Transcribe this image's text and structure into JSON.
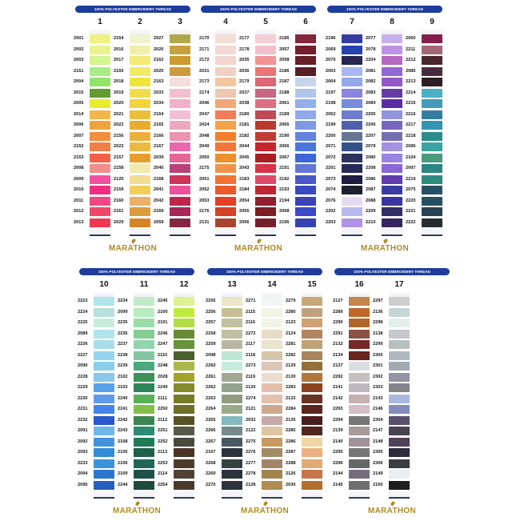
{
  "banner_text": "100% POLYESTER EMBROIDERY THREAD",
  "brand_logo": "MARATHON",
  "colors": {
    "banner": "#1e3c9c",
    "logo": "#b08a22"
  },
  "cards": [
    {
      "columns": [
        {
          "number": "1",
          "codes": [
            "2001",
            "2002",
            "2003",
            "2151",
            "2004",
            "2015",
            "2005",
            "2014",
            "2006",
            "2007",
            "2152",
            "2153",
            "2008",
            "2009",
            "2010",
            "2011",
            "2012",
            "2013"
          ],
          "swatches": [
            "#f6f77a",
            "#eefa8a",
            "#d8fb8a",
            "#a6f27e",
            "#8eea5e",
            "#5a9a22",
            "#eef020",
            "#f8b640",
            "#f8a030",
            "#f88a30",
            "#f77a3c",
            "#f8583c",
            "#f88a8a",
            "#f848a0",
            "#f8207a",
            "#f83c80",
            "#f83c60",
            "#f82c48"
          ]
        },
        {
          "number": "2",
          "codes": [
            "2154",
            "2016",
            "2017",
            "2155",
            "2018",
            "2019",
            "2020",
            "2021",
            "2022",
            "2156",
            "2023",
            "2157",
            "2158",
            "2125",
            "2159",
            "2160",
            "2161",
            "2029"
          ],
          "swatches": [
            "#f6f8d0",
            "#f6f6a8",
            "#f8f070",
            "#f8f060",
            "#f6e830",
            "#f6e040",
            "#f6d830",
            "#f0c030",
            "#eeaa20",
            "#f0b030",
            "#f0b838",
            "#ee9a20",
            "#f8f0b0",
            "#f8e090",
            "#f6d050",
            "#f0b060",
            "#e09a30",
            "#d88018"
          ]
        },
        {
          "number": "3",
          "codes": [
            "2027",
            "2026",
            "2162",
            "2025",
            "2163",
            "2033",
            "2034",
            "2164",
            "2165",
            "2166",
            "2167",
            "2039",
            "2040",
            "2168",
            "2041",
            "2042",
            "2169",
            "2059"
          ],
          "swatches": [
            "#b0a840",
            "#c8a030",
            "#d09820",
            "#d09830",
            "#f8e0e0",
            "#f8c0d0",
            "#f8b0cc",
            "#f8c0d8",
            "#f0a8c0",
            "#f090b0",
            "#f060a8",
            "#e86090",
            "#b83870",
            "#d02850",
            "#f04898",
            "#c01840",
            "#a81850",
            "#801838"
          ]
        }
      ]
    },
    {
      "columns": [
        {
          "number": "4",
          "codes": [
            "2170",
            "2171",
            "2172",
            "2031",
            "2173",
            "2174",
            "2046",
            "2047",
            "2024",
            "2048",
            "2049",
            "2050",
            "2175",
            "2051",
            "2052",
            "2053",
            "2176",
            "2131"
          ],
          "swatches": [
            "#f8e0d8",
            "#f8dcd4",
            "#f8d8d0",
            "#f8d4c4",
            "#f8c8a0",
            "#f0c8b0",
            "#f8a870",
            "#f87850",
            "#f8a040",
            "#f87a20",
            "#f87030",
            "#f08c20",
            "#f89040",
            "#f86c28",
            "#f05020",
            "#e83418",
            "#d83818",
            "#a83a20"
          ]
        },
        {
          "number": "5",
          "codes": [
            "2177",
            "2178",
            "2035",
            "2036",
            "2179",
            "2037",
            "2038",
            "2180",
            "2181",
            "2182",
            "2044",
            "2045",
            "2043",
            "2183",
            "2184",
            "2054",
            "2055",
            "2056"
          ],
          "swatches": [
            "#f8d0d8",
            "#f8c0cc",
            "#f89090",
            "#f07070",
            "#e06070",
            "#c86080",
            "#e06880",
            "#c04050",
            "#b83020",
            "#c03028",
            "#c81820",
            "#a81018",
            "#d82840",
            "#e04060",
            "#c01828",
            "#901020",
            "#781018",
            "#701020"
          ]
        },
        {
          "number": "6",
          "codes": [
            "2185",
            "2057",
            "2058",
            "2186",
            "2187",
            "2188",
            "2061",
            "2189",
            "2065",
            "2190",
            "2066",
            "2067",
            "2191",
            "2192",
            "2193",
            "2194",
            "2068",
            "2195"
          ],
          "swatches": [
            "#801830",
            "#701020",
            "#601018",
            "#501018",
            "#c8d8f0",
            "#b0c8f0",
            "#90b0f0",
            "#8ca8f0",
            "#7898e8",
            "#5880e0",
            "#4070e0",
            "#3060d8",
            "#6070d8",
            "#4050c8",
            "#3040c0",
            "#3038b8",
            "#3040c8",
            "#2838b0"
          ]
        }
      ]
    },
    {
      "columns": [
        {
          "number": "7",
          "codes": [
            "2196",
            "2069",
            "2070",
            "2063",
            "2064",
            "2197",
            "2198",
            "2062",
            "2199",
            "2200",
            "2071",
            "2072",
            "2201",
            "2073",
            "2074",
            "2076",
            "2202",
            "2203"
          ],
          "swatches": [
            "#2830a0",
            "#1838b0",
            "#181848",
            "#a8b8f8",
            "#90a8f0",
            "#8880e0",
            "#7088e0",
            "#6878d0",
            "#4858a8",
            "#607090",
            "#284888",
            "#202858",
            "#181c50",
            "#101038",
            "#101020",
            "#e8e0f8",
            "#b8b8f0",
            "#b090e8"
          ]
        },
        {
          "number": "8",
          "codes": [
            "2077",
            "2078",
            "2204",
            "2081",
            "2082",
            "2083",
            "2084",
            "2205",
            "2206",
            "2207",
            "2079",
            "2080",
            "2208",
            "2086",
            "2087",
            "2088",
            "2209",
            "2210"
          ],
          "swatches": [
            "#c8b0f0",
            "#c090e8",
            "#b860c0",
            "#9060d8",
            "#9050c8",
            "#6030a0",
            "#5020a0",
            "#9090e0",
            "#7060c0",
            "#7068b0",
            "#a090e8",
            "#9880e8",
            "#8860d8",
            "#5830b0",
            "#3030a0",
            "#3028a0",
            "#282060",
            "#281858"
          ]
        },
        {
          "number": "9",
          "codes": [
            "2060",
            "2211",
            "2212",
            "2085",
            "2213",
            "2214",
            "2215",
            "2216",
            "2217",
            "2218",
            "2096",
            "2104",
            "2097",
            "2219",
            "2075",
            "2220",
            "2221",
            "2222"
          ],
          "swatches": [
            "#801040",
            "#a06070",
            "#401820",
            "#402030",
            "#201018",
            "#40b0c8",
            "#3898b8",
            "#2878a0",
            "#2890b0",
            "#208888",
            "#30a0a0",
            "#409878",
            "#208080",
            "#208878",
            "#184860",
            "#184858",
            "#183848",
            "#182020"
          ]
        }
      ]
    },
    {
      "columns": [
        {
          "number": "10",
          "codes": [
            "2223",
            "2224",
            "2225",
            "2089",
            "2226",
            "2227",
            "2090",
            "2228",
            "2229",
            "2230",
            "2231",
            "2232",
            "2091",
            "2092",
            "2093",
            "2233",
            "2094",
            "2095"
          ],
          "swatches": [
            "#b0e8f0",
            "#b8e4e0",
            "#c8f0e0",
            "#b0e8f0",
            "#a8e0ec",
            "#90d8f0",
            "#88d0f0",
            "#88c8f0",
            "#50a0f0",
            "#5898f0",
            "#3880f0",
            "#2050d0",
            "#68b8f0",
            "#3890e0",
            "#2888d8",
            "#3090e0",
            "#2070d0",
            "#1858c0"
          ]
        },
        {
          "number": "11",
          "codes": [
            "2234",
            "2099",
            "2235",
            "2236",
            "2237",
            "2238",
            "2239",
            "2102",
            "2103",
            "2240",
            "2241",
            "2242",
            "2243",
            "2108",
            "2105",
            "2106",
            "2109",
            "2244"
          ],
          "swatches": [
            "#c0f0c8",
            "#b8f0c0",
            "#98e0a8",
            "#80d090",
            "#90d8b0",
            "#80c8a0",
            "#40a878",
            "#309050",
            "#208050",
            "#50b050",
            "#80c040",
            "#308048",
            "#208870",
            "#107850",
            "#105840",
            "#106050",
            "#104840",
            "#104030"
          ]
        },
        {
          "number": "12",
          "codes": [
            "2245",
            "2100",
            "2101",
            "2246",
            "2247",
            "2110",
            "2248",
            "2028",
            "2249",
            "2111",
            "2250",
            "2112",
            "2251",
            "2252",
            "2113",
            "2253",
            "2114",
            "2254"
          ],
          "swatches": [
            "#e0f890",
            "#c0f030",
            "#b0e040",
            "#608828",
            "#609030",
            "#405820",
            "#a8b840",
            "#a0a020",
            "#808820",
            "#707818",
            "#686818",
            "#504818",
            "#505040",
            "#404030",
            "#402818",
            "#403020",
            "#483828",
            "#403020"
          ]
        }
      ]
    },
    {
      "columns": [
        {
          "number": "13",
          "codes": [
            "2255",
            "2256",
            "2257",
            "2258",
            "2259",
            "2098",
            "2260",
            "2261",
            "2262",
            "2263",
            "2264",
            "2265",
            "2266",
            "2267",
            "2107",
            "2268",
            "2269",
            "2270"
          ],
          "swatches": [
            "#f0ecc8",
            "#c8c090",
            "#c0c0a0",
            "#c0c0a0",
            "#b8b8a0",
            "#c0ecd8",
            "#c8f0e0",
            "#a0a890",
            "#90a088",
            "#909878",
            "#98a888",
            "#80b8c0",
            "#708888",
            "#405058",
            "#202830",
            "#283838",
            "#202830",
            "#202830"
          ]
        },
        {
          "number": "14",
          "codes": [
            "2271",
            "2115",
            "2116",
            "2272",
            "2117",
            "2118",
            "2273",
            "2119",
            "2120",
            "2274",
            "2121",
            "2032",
            "2122",
            "2275",
            "2276",
            "2277",
            "2278",
            "2128"
          ],
          "swatches": [
            "#f8fcf8",
            "#f8f8ec",
            "#f8fae8",
            "#ece0c8",
            "#f0e8d0",
            "#d8c8a8",
            "#e0c8b8",
            "#f0e0d0",
            "#e8c0a8",
            "#e8c0b0",
            "#d0a888",
            "#c8a8a8",
            "#e0c8a0",
            "#c89858",
            "#a08860",
            "#a08060",
            "#a08048",
            "#b08848"
          ]
        },
        {
          "number": "15",
          "codes": [
            "2279",
            "2280",
            "2123",
            "2124",
            "2281",
            "2282",
            "2129",
            "2130",
            "2283",
            "2133",
            "2284",
            "2135",
            "2285",
            "2286",
            "2287",
            "2288",
            "2126",
            "2030"
          ],
          "swatches": [
            "#c8a870",
            "#c0a078",
            "#d0a070",
            "#b08058",
            "#c0a070",
            "#a88058",
            "#906830",
            "#b07030",
            "#883810",
            "#602818",
            "#501810",
            "#401010",
            "#481810",
            "#f8d8a0",
            "#f0b078",
            "#e8a870",
            "#c87040",
            "#b06820"
          ]
        }
      ]
    },
    {
      "columns": [
        {
          "number": "16",
          "codes": [
            "2127",
            "2289",
            "2290",
            "2291",
            "2132",
            "2134",
            "2137",
            "2292",
            "2141",
            "2142",
            "2293",
            "2294",
            "2139",
            "2140",
            "2295",
            "2296",
            "2144",
            "2145"
          ],
          "swatches": [
            "#c88040",
            "#c06020",
            "#b06020",
            "#884838",
            "#701c18",
            "#601810",
            "#e0e0e8",
            "#c8c0c0",
            "#c0b8c0",
            "#c8b0b0",
            "#d8c0c8",
            "#707070",
            "#a89898",
            "#a09098",
            "#707070",
            "#606060",
            "#706878",
            "#686868"
          ]
        },
        {
          "number": "17",
          "codes": [
            "2297",
            "2136",
            "2298",
            "2138",
            "2299",
            "2300",
            "2301",
            "2302",
            "2303",
            "2143",
            "2146",
            "2304",
            "2147",
            "2148",
            "2305",
            "2306",
            "2149",
            "2150"
          ],
          "swatches": [
            "#d0d0d0",
            "#c8d8d8",
            "#e8f4f0",
            "#c8c8d0",
            "#b8c0c0",
            "#b0b8c0",
            "#a0a8b0",
            "#9090a0",
            "#808088",
            "#a8b8e0",
            "#8088c0",
            "#504868",
            "#403848",
            "#483850",
            "#202030",
            "#303038",
            "#f0f4f8",
            "#101010"
          ]
        }
      ]
    }
  ]
}
